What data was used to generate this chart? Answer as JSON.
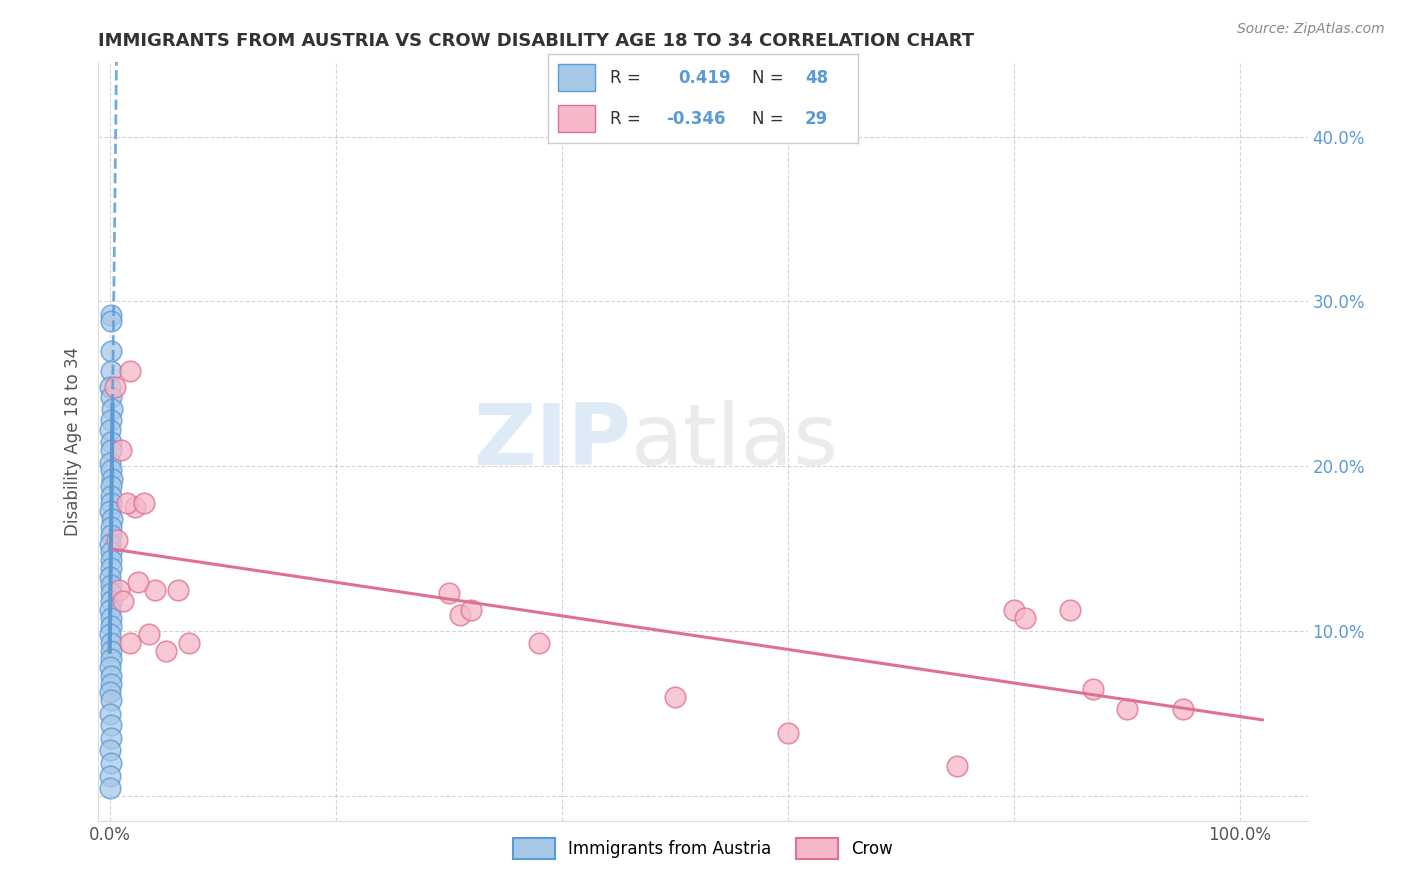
{
  "title": "IMMIGRANTS FROM AUSTRIA VS CROW DISABILITY AGE 18 TO 34 CORRELATION CHART",
  "source": "Source: ZipAtlas.com",
  "ylabel": "Disability Age 18 to 34",
  "xlim": [
    -0.01,
    1.06
  ],
  "ylim": [
    -0.015,
    0.445
  ],
  "xtick_positions": [
    0.0,
    0.2,
    0.4,
    0.6,
    0.8,
    1.0
  ],
  "xtick_labels": [
    "0.0%",
    "",
    "",
    "",
    "",
    "100.0%"
  ],
  "ytick_positions": [
    0.0,
    0.1,
    0.2,
    0.3,
    0.4
  ],
  "ytick_labels_right": [
    "",
    "10.0%",
    "20.0%",
    "30.0%",
    "40.0%"
  ],
  "blue_R": 0.419,
  "blue_N": 48,
  "pink_R": -0.346,
  "pink_N": 29,
  "blue_scatter": [
    [
      0.0008,
      0.27
    ],
    [
      0.0012,
      0.292
    ],
    [
      0.0015,
      0.288
    ],
    [
      0.001,
      0.258
    ],
    [
      0.0005,
      0.248
    ],
    [
      0.0007,
      0.242
    ],
    [
      0.002,
      0.235
    ],
    [
      0.001,
      0.228
    ],
    [
      0.0003,
      0.222
    ],
    [
      0.0008,
      0.215
    ],
    [
      0.0015,
      0.21
    ],
    [
      0.0005,
      0.202
    ],
    [
      0.0012,
      0.198
    ],
    [
      0.0018,
      0.192
    ],
    [
      0.0008,
      0.188
    ],
    [
      0.001,
      0.182
    ],
    [
      0.0015,
      0.178
    ],
    [
      0.0005,
      0.173
    ],
    [
      0.002,
      0.168
    ],
    [
      0.0008,
      0.163
    ],
    [
      0.0012,
      0.158
    ],
    [
      0.0005,
      0.153
    ],
    [
      0.0015,
      0.148
    ],
    [
      0.001,
      0.143
    ],
    [
      0.0007,
      0.138
    ],
    [
      0.0003,
      0.133
    ],
    [
      0.0008,
      0.128
    ],
    [
      0.0012,
      0.123
    ],
    [
      0.0015,
      0.118
    ],
    [
      0.0005,
      0.113
    ],
    [
      0.001,
      0.108
    ],
    [
      0.0007,
      0.103
    ],
    [
      0.0003,
      0.098
    ],
    [
      0.0008,
      0.093
    ],
    [
      0.0012,
      0.088
    ],
    [
      0.0015,
      0.083
    ],
    [
      0.0005,
      0.078
    ],
    [
      0.001,
      0.073
    ],
    [
      0.0007,
      0.068
    ],
    [
      0.0003,
      0.063
    ],
    [
      0.0008,
      0.058
    ],
    [
      0.0005,
      0.05
    ],
    [
      0.001,
      0.043
    ],
    [
      0.0007,
      0.035
    ],
    [
      0.0003,
      0.028
    ],
    [
      0.0008,
      0.02
    ],
    [
      0.0005,
      0.012
    ],
    [
      0.0003,
      0.005
    ]
  ],
  "pink_scatter": [
    [
      0.005,
      0.248
    ],
    [
      0.01,
      0.21
    ],
    [
      0.018,
      0.258
    ],
    [
      0.022,
      0.175
    ],
    [
      0.006,
      0.155
    ],
    [
      0.015,
      0.178
    ],
    [
      0.03,
      0.178
    ],
    [
      0.008,
      0.125
    ],
    [
      0.04,
      0.125
    ],
    [
      0.012,
      0.118
    ],
    [
      0.06,
      0.125
    ],
    [
      0.035,
      0.098
    ],
    [
      0.018,
      0.093
    ],
    [
      0.025,
      0.13
    ],
    [
      0.05,
      0.088
    ],
    [
      0.07,
      0.093
    ],
    [
      0.3,
      0.123
    ],
    [
      0.31,
      0.11
    ],
    [
      0.32,
      0.113
    ],
    [
      0.38,
      0.093
    ],
    [
      0.5,
      0.06
    ],
    [
      0.8,
      0.113
    ],
    [
      0.81,
      0.108
    ],
    [
      0.85,
      0.113
    ],
    [
      0.87,
      0.065
    ],
    [
      0.9,
      0.053
    ],
    [
      0.95,
      0.053
    ],
    [
      0.6,
      0.038
    ],
    [
      0.75,
      0.018
    ]
  ],
  "blue_line_color": "#5b9bd5",
  "pink_line_color": "#e07090",
  "blue_scatter_facecolor": "#a8c8e8",
  "pink_scatter_facecolor": "#f5b8c8",
  "watermark_color": "#d8e8f0",
  "background_color": "#ffffff",
  "grid_color": "#cccccc",
  "grid_style": "--",
  "title_color": "#333333",
  "axis_label_color": "#555555",
  "right_tick_color": "#5b9bd5"
}
